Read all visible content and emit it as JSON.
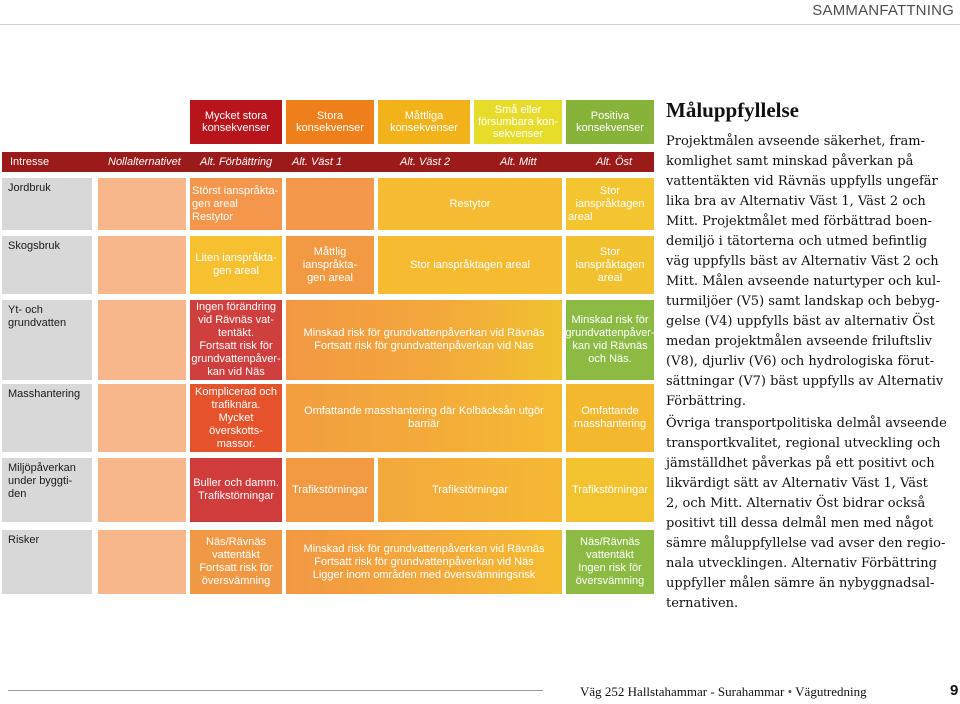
{
  "header": {
    "section": "SAMMANFATTNING"
  },
  "legend": [
    {
      "label": "Mycket stora konsekvenser",
      "lines": [
        "Mycket stora",
        "konsekvenser"
      ],
      "color": "#b8141c"
    },
    {
      "label": "Stora konsekvenser",
      "lines": [
        "Stora",
        "konsekvenser"
      ],
      "color": "#ef7f1a"
    },
    {
      "label": "Måttliga konsekvenser",
      "lines": [
        "Måttliga",
        "konsekvenser"
      ],
      "color": "#f2b21a"
    },
    {
      "label": "Små eller försumbara konsekvenser",
      "lines": [
        "Små eller",
        "försumbara kon-",
        "sekvenser"
      ],
      "color": "#e7dc2a"
    },
    {
      "label": "Positiva konsekvenser",
      "lines": [
        "Positiva",
        "konsekvenser"
      ],
      "color": "#87b33a"
    }
  ],
  "columns": {
    "intresse": "Intresse",
    "noll": "Nollalternativet",
    "forbattring": "Alt. Förbättring",
    "vast1": "Alt. Väst 1",
    "vast2": "Alt. Väst 2",
    "mitt": "Alt. Mitt",
    "ost": "Alt. Öst"
  },
  "rows": {
    "jordbruk": "Jordbruk",
    "skogsbruk": "Skogsbruk",
    "grundvatten": [
      "Yt- och",
      "grundvatten"
    ],
    "masshantering": "Masshantering",
    "miljo": [
      "Miljöpåverkan",
      "under byggti-",
      "den"
    ],
    "risker": "Risker"
  },
  "cells": {
    "jordbruk_forb": [
      "Störst ianspråkta-",
      "gen areal",
      "Restytor"
    ],
    "jordbruk_mid": "Restytor",
    "jordbruk_ost": [
      "Stor ianspråktagen",
      "areal"
    ],
    "skog_forb": [
      "Liten ianspråkta-",
      "gen areal"
    ],
    "skog_vast1": [
      "Måttlig ianspråkta-",
      "gen areal"
    ],
    "skog_mid": "Stor ianspråktagen areal",
    "skog_ost": [
      "Stor ianspråktagen",
      "areal"
    ],
    "gv_forb": [
      "Ingen förändring",
      "vid Rävnäs vat-",
      "tentäkt.",
      "Fortsatt risk för",
      "grundvattenpåver-",
      "kan vid Näs"
    ],
    "gv_mid": [
      "Minskad risk för grundvattenpåverkan vid Rävnäs",
      "Fortsatt risk för grundvattenpåverkan vid Näs"
    ],
    "gv_ost": [
      "Minskad risk för",
      "grundvattenpåver-",
      "kan vid Rävnäs",
      "och Näs."
    ],
    "mass_forb": [
      "Komplicerad och",
      "trafiknära.",
      "Mycket överskotts-",
      "massor."
    ],
    "mass_mid": "Omfattande masshantering där Kolbäcksån utgör barriär",
    "mass_ost": [
      "Omfattande",
      "masshantering"
    ],
    "miljo_forb": [
      "Buller och damm.",
      "Trafikstörningar"
    ],
    "miljo_vast1": "Trafikstörningar",
    "miljo_mid": "Trafikstörningar",
    "miljo_ost": "Trafikstörningar",
    "risk_forb": [
      "Näs/Rävnäs",
      "vattentäkt",
      "Fortsatt risk för",
      "översvämning"
    ],
    "risk_mid": [
      "Minskad risk för grundvattenpåverkan vid Rävnäs",
      "Fortsatt risk för grundvattenpåverkan vid Näs",
      "Ligger inom områden med översvämningsrisk"
    ],
    "risk_ost": [
      "Näs/Rävnäs",
      "vattentäkt",
      "Ingen risk för",
      "översvämning"
    ]
  },
  "sidebar": {
    "title": "Måluppfyllelse",
    "para1": [
      "Projektmålen avseende säkerhet, fram-",
      "komlighet samt minskad påverkan på",
      "vattentäkten vid Rävnäs uppfylls ungefär",
      "lika bra av Alternativ Väst 1, Väst 2 och",
      "Mitt. Projektmålet med förbättrad boen-",
      "demiljö i tätorterna och utmed befintlig",
      "väg uppfylls bäst av Alternativ Väst 2 och",
      "Mitt. Målen avseende naturtyper och kul-",
      "turmiljöer (V5) samt landskap och bebyg-",
      "gelse (V4) uppfylls bäst av alternativ Öst",
      "medan projektmålen avseende friluftsliv",
      "(V8), djurliv (V6) och hydrologiska förut-",
      "sättningar (V7) bäst uppfylls av Alternativ",
      "Förbättring."
    ],
    "para2": [
      "Övriga transportpolitiska delmål avseende",
      "transportkvalitet, regional utveckling och",
      "jämställdhet påverkas på ett positivt och",
      "likvärdigt sätt av Alternativ Väst 1, Väst",
      "2, och Mitt. Alternativ Öst bidrar också",
      "positivt till dessa delmål men med något",
      "sämre måluppfyllelse vad avser den regio-",
      "nala utvecklingen. Alternativ Förbättring",
      "uppfyller målen sämre än nybyggnadsal-",
      "ternativen."
    ]
  },
  "footer": {
    "project": "Väg 252 Hallstahammar - Surahammar",
    "separator": "•",
    "doc": "Vägutredning",
    "page": "9"
  }
}
